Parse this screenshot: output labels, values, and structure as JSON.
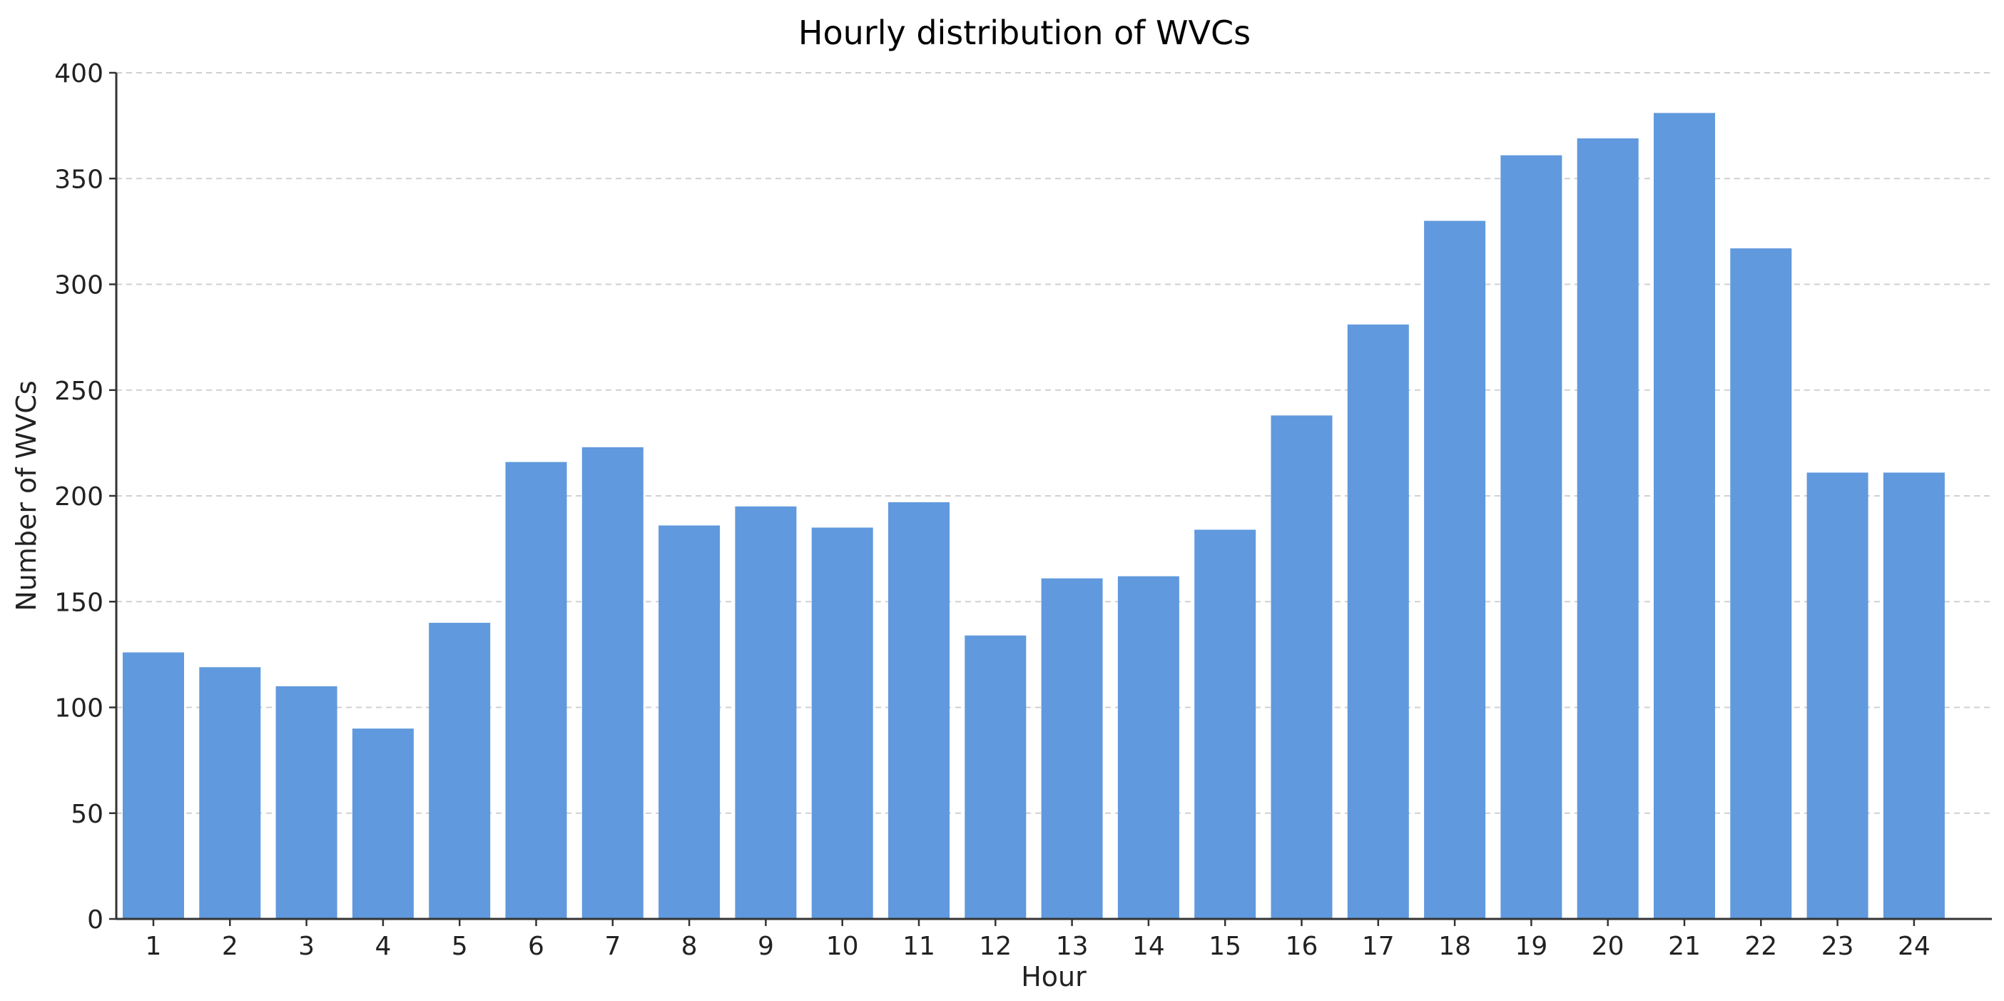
{
  "chart_data": {
    "type": "bar",
    "title": "Hourly distribution of WVCs",
    "xlabel": "Hour",
    "ylabel": "Number of WVCs",
    "categories": [
      "1",
      "2",
      "3",
      "4",
      "5",
      "6",
      "7",
      "8",
      "9",
      "10",
      "11",
      "12",
      "13",
      "14",
      "15",
      "16",
      "17",
      "18",
      "19",
      "20",
      "21",
      "22",
      "23",
      "24"
    ],
    "values": [
      126,
      119,
      110,
      90,
      140,
      216,
      223,
      186,
      195,
      185,
      197,
      134,
      161,
      162,
      184,
      238,
      281,
      330,
      361,
      369,
      381,
      317,
      211,
      211
    ],
    "ylim": [
      0,
      400
    ],
    "yticks": [
      0,
      50,
      100,
      150,
      200,
      250,
      300,
      350,
      400
    ],
    "grid": "horizontal dashed",
    "legend": "none",
    "bar_color": "#6099dd"
  }
}
